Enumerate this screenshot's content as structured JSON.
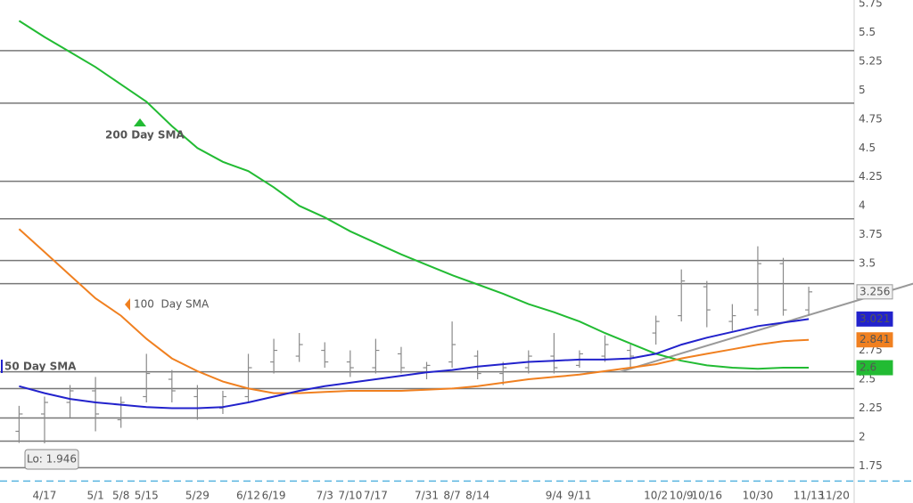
{
  "chart_data": {
    "type": "ohlc",
    "categories": [
      null,
      "4/17",
      null,
      "5/1",
      "5/8",
      "5/15",
      null,
      "5/29",
      null,
      "6/12",
      "6/19",
      null,
      "7/3",
      "7/10",
      "7/17",
      null,
      "7/31",
      "8/7",
      "8/14",
      null,
      null,
      "9/4",
      "9/11",
      null,
      null,
      "10/2",
      "10/9",
      "10/16",
      null,
      "10/30",
      null,
      "11/13",
      "11/20"
    ],
    "price": {
      "color": "#8a8a8a",
      "open": [
        2.05,
        2.2,
        2.3,
        2.4,
        2.15,
        2.35,
        2.5,
        2.35,
        2.25,
        2.35,
        2.65,
        2.7,
        2.75,
        2.65,
        2.6,
        2.72,
        2.6,
        2.65,
        2.7,
        2.55,
        2.6,
        2.7,
        2.62,
        2.7,
        2.75,
        2.9,
        3.05,
        3.3,
        3.0,
        3.1,
        3.5,
        3.1,
        null
      ],
      "high": [
        2.27,
        2.35,
        2.45,
        2.52,
        2.35,
        2.72,
        2.58,
        2.45,
        2.4,
        2.72,
        2.85,
        2.9,
        2.82,
        2.75,
        2.85,
        2.78,
        2.65,
        3.0,
        2.75,
        2.65,
        2.75,
        2.9,
        2.75,
        2.88,
        2.8,
        3.05,
        3.45,
        3.35,
        3.15,
        3.65,
        3.55,
        3.3,
        null
      ],
      "low": [
        1.95,
        1.946,
        2.17,
        2.05,
        2.08,
        2.3,
        2.3,
        2.15,
        2.2,
        2.3,
        2.55,
        2.65,
        2.6,
        2.52,
        2.55,
        2.55,
        2.5,
        2.6,
        2.5,
        2.45,
        2.55,
        2.55,
        2.6,
        2.65,
        2.6,
        2.8,
        3.0,
        2.95,
        2.92,
        3.05,
        3.05,
        3.05,
        null
      ],
      "close": [
        2.2,
        2.3,
        2.4,
        2.2,
        2.3,
        2.55,
        2.4,
        2.25,
        2.35,
        2.6,
        2.75,
        2.8,
        2.65,
        2.6,
        2.75,
        2.6,
        2.62,
        2.8,
        2.55,
        2.6,
        2.7,
        2.6,
        2.72,
        2.8,
        2.7,
        3.0,
        3.35,
        3.1,
        3.05,
        3.5,
        3.1,
        3.256,
        null
      ]
    },
    "series": [
      {
        "name": "200 Day SMA",
        "color": "#22bb33",
        "values": [
          5.6,
          5.46,
          5.33,
          5.2,
          5.05,
          4.9,
          4.69,
          4.5,
          4.38,
          4.3,
          4.16,
          4.0,
          3.9,
          3.78,
          3.68,
          3.58,
          3.49,
          3.4,
          3.32,
          3.24,
          3.15,
          3.08,
          3.0,
          2.9,
          2.81,
          2.72,
          2.66,
          2.62,
          2.6,
          2.59,
          2.6,
          2.6,
          null
        ]
      },
      {
        "name": "100  Day SMA",
        "color": "#f08020",
        "values": [
          3.8,
          3.6,
          3.4,
          3.2,
          3.05,
          2.85,
          2.68,
          2.57,
          2.48,
          2.42,
          2.38,
          2.38,
          2.39,
          2.4,
          2.4,
          2.4,
          2.41,
          2.42,
          2.44,
          2.47,
          2.5,
          2.52,
          2.54,
          2.57,
          2.6,
          2.63,
          2.68,
          2.72,
          2.76,
          2.8,
          2.83,
          2.841,
          null
        ]
      },
      {
        "name": "50 Day SMA",
        "color": "#2222cc",
        "values": [
          2.44,
          2.38,
          2.33,
          2.3,
          2.28,
          2.26,
          2.25,
          2.25,
          2.26,
          2.3,
          2.35,
          2.4,
          2.44,
          2.47,
          2.5,
          2.53,
          2.56,
          2.58,
          2.61,
          2.63,
          2.65,
          2.66,
          2.67,
          2.67,
          2.68,
          2.72,
          2.8,
          2.86,
          2.91,
          2.96,
          2.99,
          3.021,
          null
        ]
      }
    ],
    "levels": [
      5.342,
      4.888,
      4.212,
      3.888,
      3.527,
      3.327,
      2.565,
      2.419,
      2.165,
      1.965,
      1.735
    ],
    "dashed_level": 1.62,
    "trendline": {
      "color": "#999999",
      "from": [
        23.6,
        2.565
      ],
      "to": [
        35.1,
        3.327
      ]
    },
    "annotation": "Lo: 1.946",
    "ylim": [
      1.43,
      5.78
    ],
    "yticks": [
      1.75,
      2,
      2.25,
      2.5,
      2.75,
      3,
      3.25,
      3.5,
      3.75,
      4,
      4.25,
      4.5,
      4.75,
      5,
      5.25,
      5.5,
      5.75
    ]
  }
}
